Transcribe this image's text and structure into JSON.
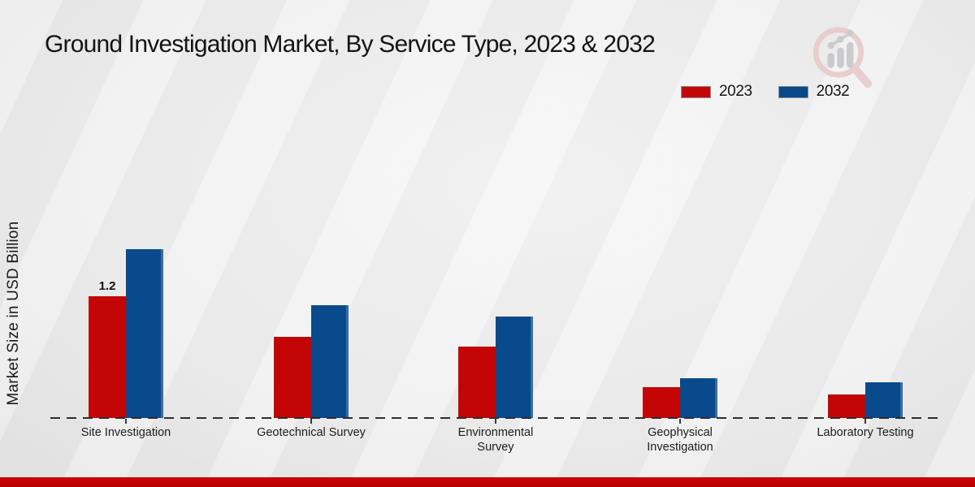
{
  "chart_data": {
    "type": "bar",
    "title": "Ground Investigation Market, By Service Type, 2023 & 2032",
    "ylabel": "Market Size in USD Billion",
    "xlabel": "",
    "categories": [
      "Site Investigation",
      "Geotechnical Survey",
      "Environmental Survey",
      "Geophysical Investigation",
      "Laboratory Testing"
    ],
    "series": [
      {
        "name": "2023",
        "color": "#c40505",
        "values": [
          1.2,
          0.8,
          0.7,
          0.3,
          0.23
        ]
      },
      {
        "name": "2032",
        "color": "#084a8b",
        "values": [
          1.66,
          1.11,
          1.0,
          0.39,
          0.35
        ]
      }
    ],
    "bar_labels": [
      {
        "series": "2023",
        "category": "Site Investigation",
        "text": "1.2"
      }
    ],
    "ylim": [
      0,
      1.8
    ],
    "grid": false,
    "axis_style": "dashed-baseline-only",
    "legend_position": "top-right"
  },
  "watermark": {
    "icon": "magnifier-trend-logo",
    "ring_color": "#e8caca",
    "bar_color": "#c7c7cb"
  },
  "footer": {
    "accent_color": "#b50000"
  }
}
